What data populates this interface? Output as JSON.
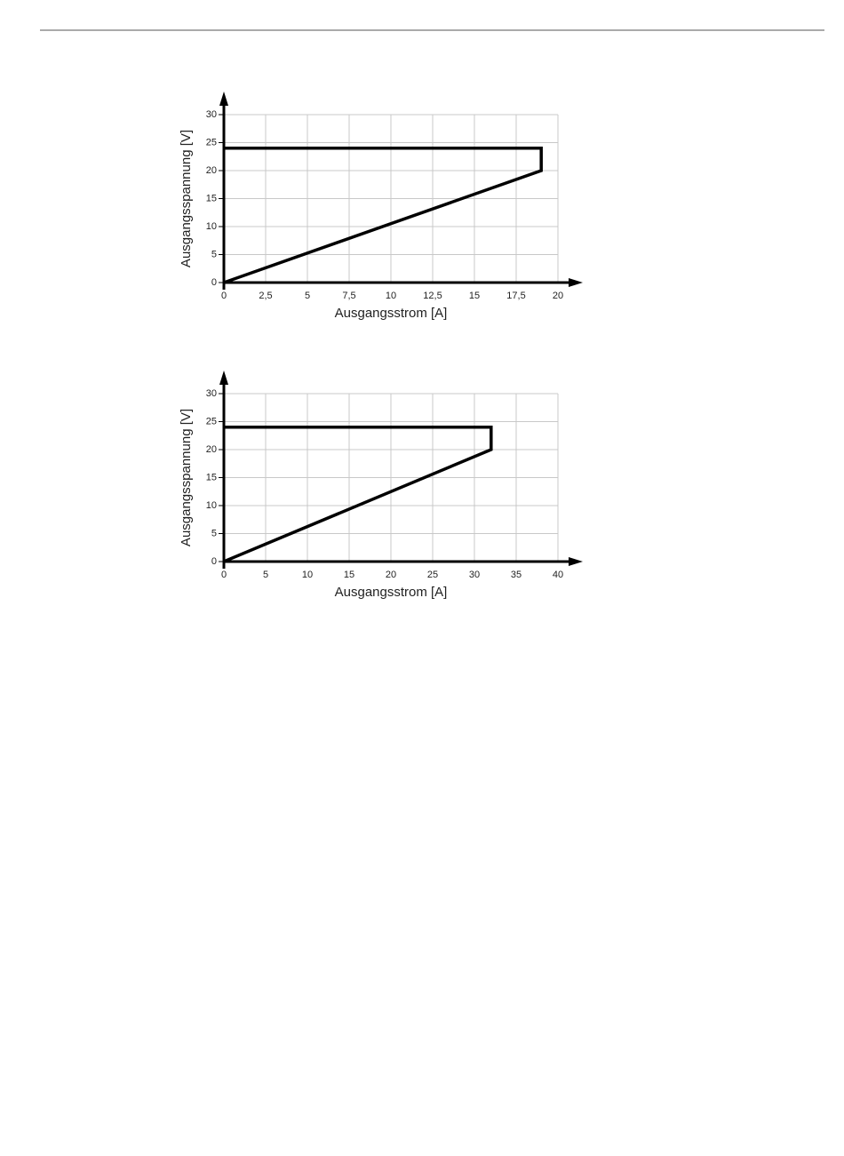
{
  "chart_data": [
    {
      "type": "line",
      "xlabel": "Ausgangsstrom [A]",
      "ylabel": "Ausgangsspannung [V]",
      "x": [
        0,
        19,
        19,
        0
      ],
      "series": [
        {
          "color": "#000000",
          "values": [
            0,
            20,
            24,
            24
          ]
        }
      ],
      "xlim": [
        0,
        20
      ],
      "xticks": [
        0,
        {
          "value": 2.5,
          "label": "2,5"
        },
        5,
        {
          "value": 7.5,
          "label": "7,5"
        },
        10,
        {
          "value": 12.5,
          "label": "12,5"
        },
        15,
        {
          "value": 17.5,
          "label": "17,5"
        },
        20
      ],
      "ylim": [
        0,
        30
      ],
      "yticks": [
        0,
        5,
        10,
        15,
        20,
        25,
        30
      ],
      "grid": true
    },
    {
      "type": "line",
      "xlabel": "Ausgangsstrom [A]",
      "ylabel": "Ausgangsspannung [V]",
      "x": [
        0,
        32,
        32,
        0
      ],
      "series": [
        {
          "color": "#000000",
          "values": [
            0,
            20,
            24,
            24
          ]
        }
      ],
      "xlim": [
        0,
        40
      ],
      "xticks": [
        0,
        5,
        10,
        15,
        20,
        25,
        30,
        35,
        40
      ],
      "ylim": [
        0,
        30
      ],
      "yticks": [
        0,
        5,
        10,
        15,
        20,
        25,
        30
      ],
      "grid": true
    }
  ]
}
